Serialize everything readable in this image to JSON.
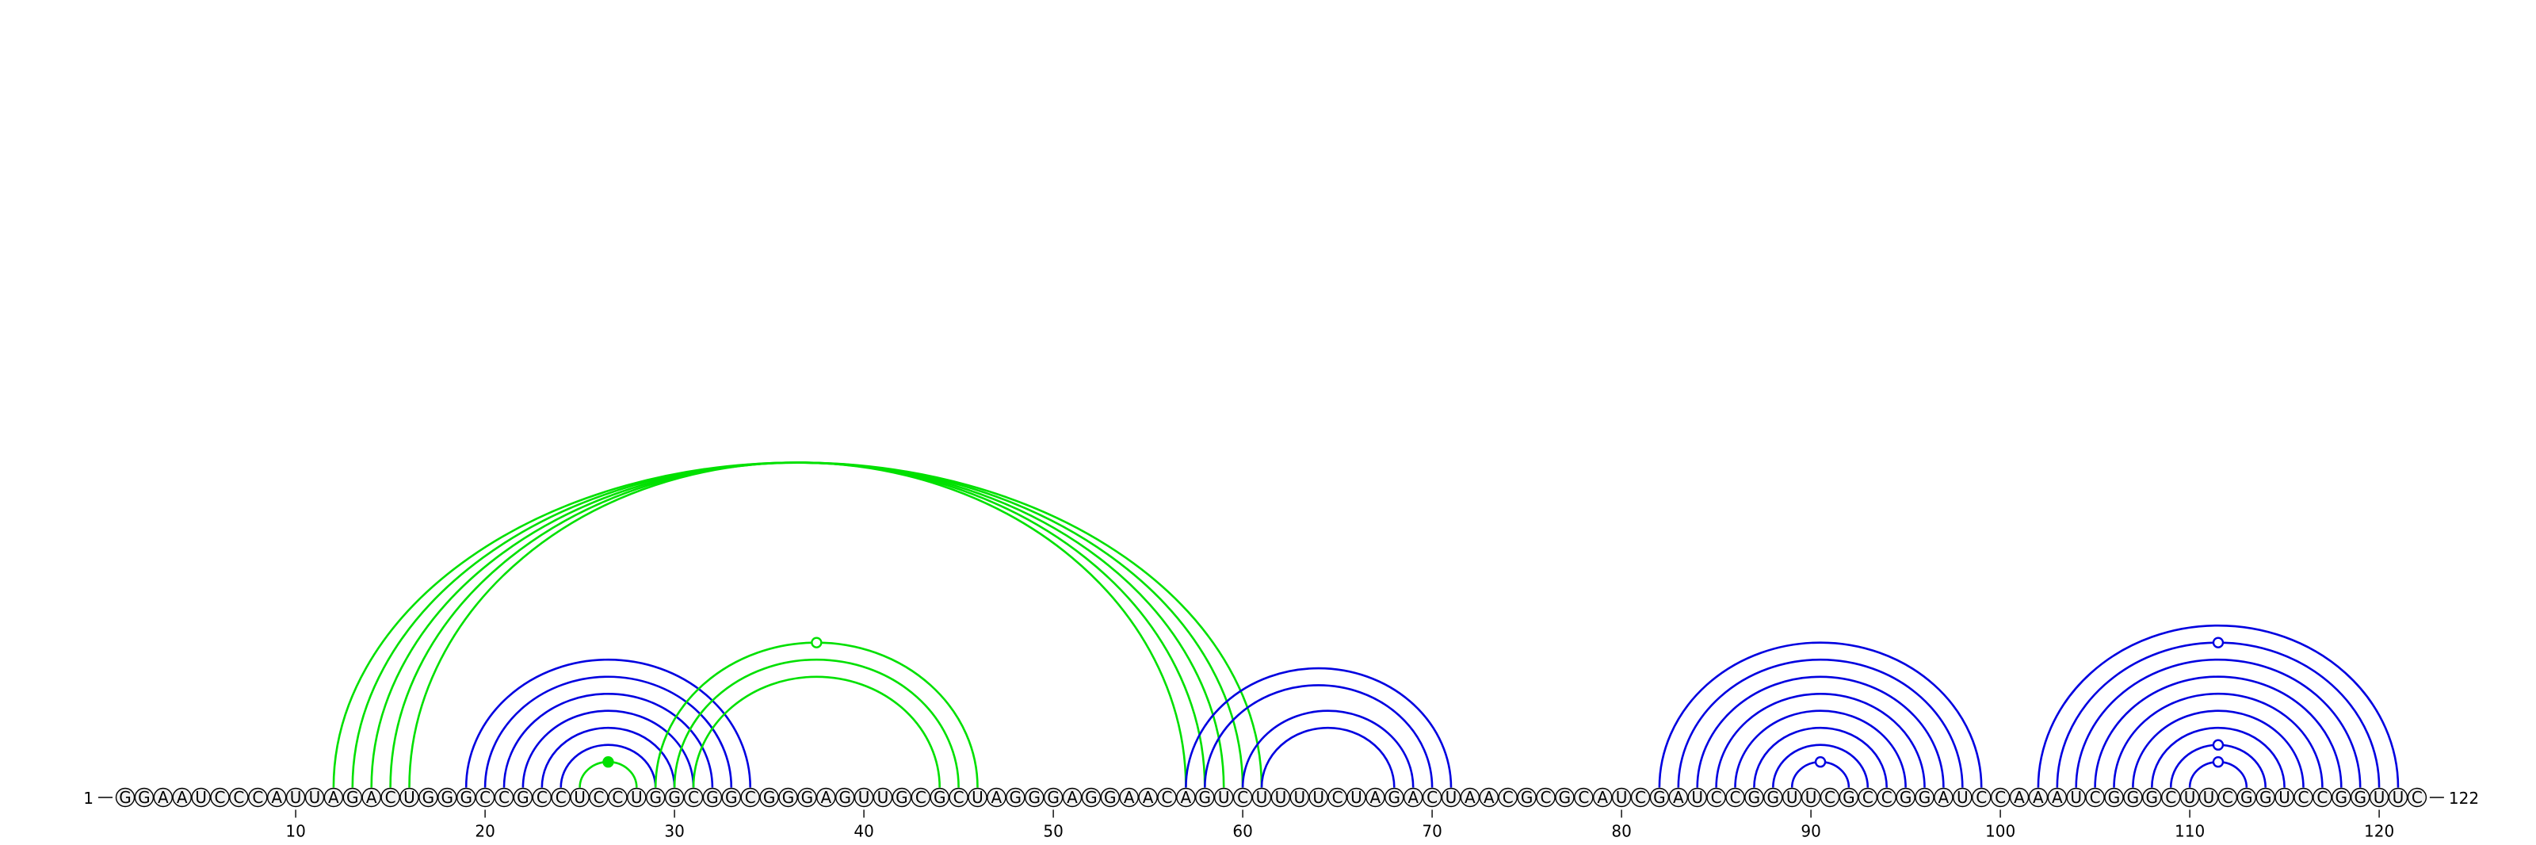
{
  "diagram": {
    "sequence": "GGAAUCCCAUUAGACUGGGCCGCCUCCUGGCGGCGGGAGUUGCGCUAGGGAGGAACAGUCUUUUCUAGACUAACGCGCAUCGAUCCGGUUCGCCGGAUCCAAAUCGGGCUUCGGUCCGGUUC",
    "start_label": "1",
    "end_label": "122",
    "tick_positions": [
      10,
      20,
      30,
      40,
      50,
      60,
      70,
      80,
      90,
      100,
      110,
      120
    ],
    "tick_labels": [
      "10",
      "20",
      "30",
      "40",
      "50",
      "60",
      "70",
      "80",
      "90",
      "100",
      "110",
      "120"
    ],
    "colors": {
      "green": "#00e000",
      "blue": "#0000e0"
    },
    "arcs": [
      {
        "i": 12,
        "j": 61,
        "color": "green"
      },
      {
        "i": 13,
        "j": 60,
        "color": "green"
      },
      {
        "i": 14,
        "j": 59,
        "color": "green"
      },
      {
        "i": 15,
        "j": 58,
        "color": "green"
      },
      {
        "i": 16,
        "j": 57,
        "color": "green"
      },
      {
        "i": 19,
        "j": 34,
        "color": "blue"
      },
      {
        "i": 20,
        "j": 33,
        "color": "blue"
      },
      {
        "i": 21,
        "j": 32,
        "color": "blue"
      },
      {
        "i": 22,
        "j": 31,
        "color": "blue"
      },
      {
        "i": 23,
        "j": 30,
        "color": "blue"
      },
      {
        "i": 24,
        "j": 29,
        "color": "blue"
      },
      {
        "i": 25,
        "j": 28,
        "color": "green",
        "dot": "filled"
      },
      {
        "i": 29,
        "j": 46,
        "color": "green",
        "dot": "open"
      },
      {
        "i": 30,
        "j": 45,
        "color": "green"
      },
      {
        "i": 31,
        "j": 44,
        "color": "green"
      },
      {
        "i": 57,
        "j": 71,
        "color": "blue"
      },
      {
        "i": 58,
        "j": 70,
        "color": "blue"
      },
      {
        "i": 60,
        "j": 69,
        "color": "blue"
      },
      {
        "i": 61,
        "j": 68,
        "color": "blue"
      },
      {
        "i": 82,
        "j": 99,
        "color": "blue"
      },
      {
        "i": 83,
        "j": 98,
        "color": "blue"
      },
      {
        "i": 84,
        "j": 97,
        "color": "blue"
      },
      {
        "i": 85,
        "j": 96,
        "color": "blue"
      },
      {
        "i": 86,
        "j": 95,
        "color": "blue"
      },
      {
        "i": 87,
        "j": 94,
        "color": "blue"
      },
      {
        "i": 88,
        "j": 93,
        "color": "blue"
      },
      {
        "i": 89,
        "j": 92,
        "color": "blue",
        "dot": "open"
      },
      {
        "i": 102,
        "j": 121,
        "color": "blue"
      },
      {
        "i": 103,
        "j": 120,
        "color": "blue",
        "dot": "open"
      },
      {
        "i": 104,
        "j": 119,
        "color": "blue"
      },
      {
        "i": 105,
        "j": 118,
        "color": "blue"
      },
      {
        "i": 106,
        "j": 117,
        "color": "blue"
      },
      {
        "i": 107,
        "j": 116,
        "color": "blue"
      },
      {
        "i": 108,
        "j": 115,
        "color": "blue"
      },
      {
        "i": 109,
        "j": 114,
        "color": "blue",
        "dot": "open"
      },
      {
        "i": 110,
        "j": 113,
        "color": "blue",
        "dot": "open"
      }
    ]
  }
}
